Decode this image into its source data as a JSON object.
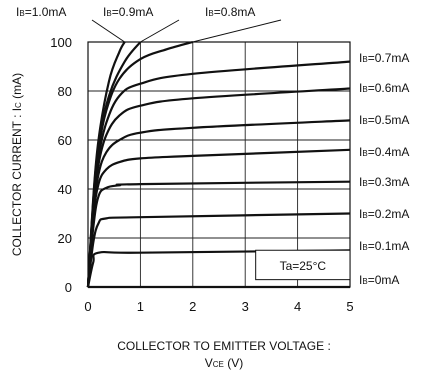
{
  "chart_data": {
    "type": "line",
    "xlabel_line1": "COLLECTOR TO EMITTER VOLTAGE :",
    "xlabel_line2_main": "V",
    "xlabel_line2_sub": "CE",
    "xlabel_line2_unit": " (V)",
    "ylabel_main": "COLLECTOR CURRENT : I",
    "ylabel_sub": "C",
    "ylabel_unit": " (mA)",
    "xlim": [
      0,
      5
    ],
    "ylim": [
      0,
      100
    ],
    "x_ticks": [
      "0",
      "1",
      "2",
      "3",
      "4",
      "5"
    ],
    "y_ticks": [
      "0",
      "20",
      "40",
      "60",
      "80",
      "100"
    ],
    "grid": true,
    "annotation": "Ta=25°C",
    "series": [
      {
        "name": "IB=0mA",
        "label_prefix": "I",
        "label_sub": "B",
        "label_value": "=0mA",
        "points": [
          [
            0,
            0
          ],
          [
            5,
            0
          ]
        ]
      },
      {
        "name": "IB=0.1mA",
        "label_prefix": "I",
        "label_sub": "B",
        "label_value": "=0.1mA",
        "points": [
          [
            0,
            0
          ],
          [
            0.1,
            10
          ],
          [
            0.2,
            14
          ],
          [
            1,
            14
          ],
          [
            5,
            15
          ]
        ]
      },
      {
        "name": "IB=0.2mA",
        "label_prefix": "I",
        "label_sub": "B",
        "label_value": "=0.2mA",
        "points": [
          [
            0,
            0
          ],
          [
            0.1,
            18
          ],
          [
            0.2,
            26
          ],
          [
            0.35,
            28
          ],
          [
            1,
            28.5
          ],
          [
            5,
            30
          ]
        ]
      },
      {
        "name": "IB=0.3mA",
        "label_prefix": "I",
        "label_sub": "B",
        "label_value": "=0.3mA",
        "points": [
          [
            0,
            0
          ],
          [
            0.1,
            24
          ],
          [
            0.2,
            37
          ],
          [
            0.35,
            40.5
          ],
          [
            0.6,
            41.5
          ],
          [
            1,
            42
          ],
          [
            5,
            43
          ]
        ]
      },
      {
        "name": "IB=0.4mA",
        "label_prefix": "I",
        "label_sub": "B",
        "label_value": "=0.4mA",
        "points": [
          [
            0,
            0
          ],
          [
            0.1,
            28
          ],
          [
            0.2,
            42
          ],
          [
            0.35,
            48
          ],
          [
            0.6,
            51
          ],
          [
            1,
            52.5
          ],
          [
            2,
            53.5
          ],
          [
            5,
            56
          ]
        ]
      },
      {
        "name": "IB=0.5mA",
        "label_prefix": "I",
        "label_sub": "B",
        "label_value": "=0.5mA",
        "points": [
          [
            0,
            0
          ],
          [
            0.1,
            30
          ],
          [
            0.2,
            46
          ],
          [
            0.35,
            55
          ],
          [
            0.6,
            60
          ],
          [
            1,
            63
          ],
          [
            2,
            65
          ],
          [
            5,
            68
          ]
        ]
      },
      {
        "name": "IB=0.6mA",
        "label_prefix": "I",
        "label_sub": "B",
        "label_value": "=0.6mA",
        "points": [
          [
            0,
            0
          ],
          [
            0.1,
            32
          ],
          [
            0.2,
            50
          ],
          [
            0.35,
            62
          ],
          [
            0.6,
            70
          ],
          [
            1,
            74
          ],
          [
            2,
            77
          ],
          [
            5,
            81
          ]
        ]
      },
      {
        "name": "IB=0.7mA",
        "label_prefix": "I",
        "label_sub": "B",
        "label_value": "=0.7mA",
        "points": [
          [
            0,
            0
          ],
          [
            0.1,
            33
          ],
          [
            0.2,
            53
          ],
          [
            0.35,
            67
          ],
          [
            0.6,
            78
          ],
          [
            1,
            83
          ],
          [
            2,
            87
          ],
          [
            5,
            92
          ]
        ]
      },
      {
        "name": "IB=0.8mA",
        "label_prefix": "I",
        "label_sub": "B",
        "label_value": "=0.8mA",
        "points": [
          [
            0,
            0
          ],
          [
            0.1,
            34
          ],
          [
            0.2,
            56
          ],
          [
            0.35,
            72
          ],
          [
            0.6,
            85
          ],
          [
            1,
            93
          ],
          [
            1.5,
            97
          ],
          [
            2,
            100
          ]
        ]
      },
      {
        "name": "IB=0.9mA",
        "label_prefix": "I",
        "label_sub": "B",
        "label_value": "=0.9mA",
        "points": [
          [
            0,
            0
          ],
          [
            0.1,
            35
          ],
          [
            0.2,
            58
          ],
          [
            0.4,
            78
          ],
          [
            0.7,
            92
          ],
          [
            1,
            100
          ]
        ]
      },
      {
        "name": "IB=1.0mA",
        "label_prefix": "I",
        "label_sub": "B",
        "label_value": "=1.0mA",
        "points": [
          [
            0,
            0
          ],
          [
            0.1,
            36
          ],
          [
            0.2,
            60
          ],
          [
            0.4,
            84
          ],
          [
            0.6,
            96
          ],
          [
            0.7,
            100
          ]
        ]
      }
    ]
  }
}
